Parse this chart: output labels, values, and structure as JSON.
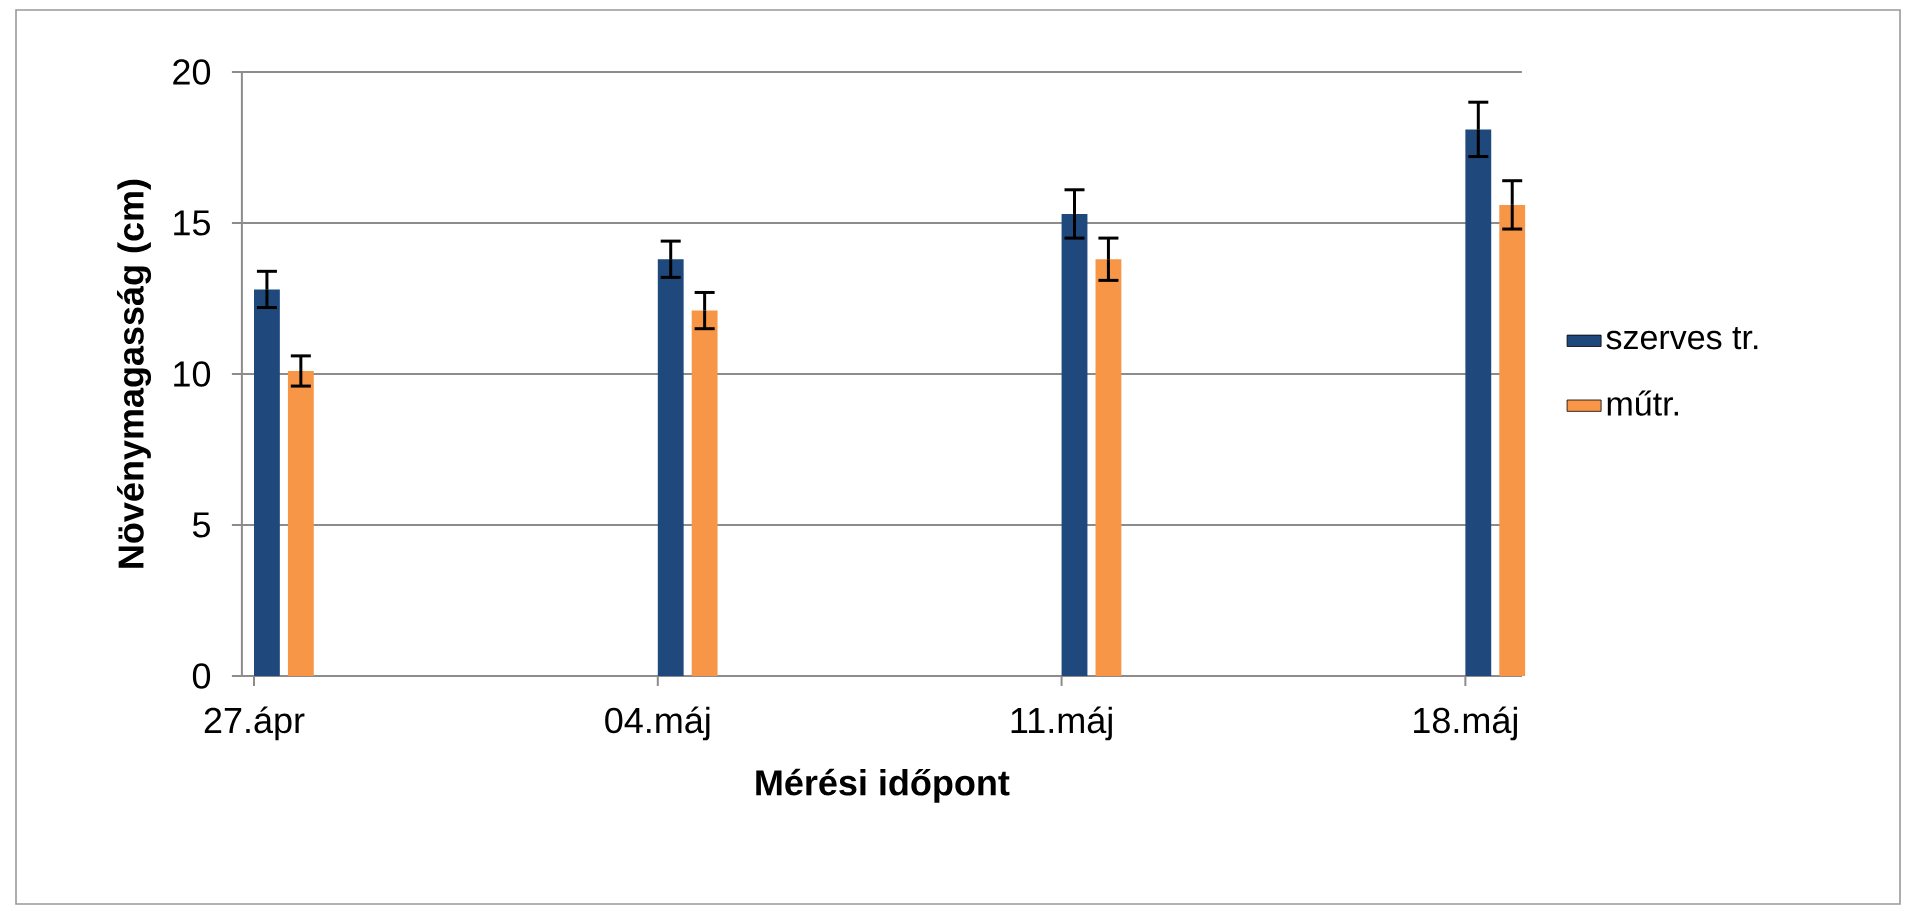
{
  "chart_data": {
    "type": "bar",
    "xlabel": "Mérési időpont",
    "ylabel": "Növénymagasság (cm)",
    "categories": [
      "27.ápr",
      "04.máj",
      "11.máj",
      "18.máj"
    ],
    "series": [
      {
        "name": "szerves tr.",
        "color": "#1f497d",
        "values": [
          12.8,
          13.8,
          15.3,
          18.1
        ],
        "errors": [
          0.6,
          0.6,
          0.8,
          0.9
        ]
      },
      {
        "name": "műtr.",
        "color": "#f79646",
        "values": [
          10.1,
          12.1,
          13.8,
          15.6
        ],
        "errors": [
          0.5,
          0.6,
          0.7,
          0.8
        ]
      }
    ],
    "ylim": [
      0,
      20
    ],
    "yticks": [
      0,
      5,
      10,
      15,
      20
    ],
    "grid": "y",
    "legend": "right"
  }
}
